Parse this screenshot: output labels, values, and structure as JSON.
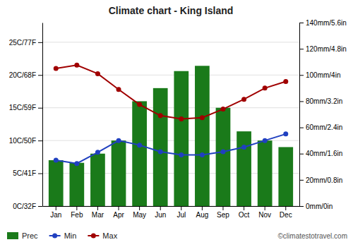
{
  "chart_data": {
    "type": "bar",
    "title": "Climate chart - King Island",
    "categories": [
      "Jan",
      "Feb",
      "Mar",
      "Apr",
      "May",
      "Jun",
      "Jul",
      "Aug",
      "Sep",
      "Oct",
      "Nov",
      "Dec"
    ],
    "series": [
      {
        "name": "Prec",
        "type": "bar",
        "axis": "y2",
        "color": "#1a7a1a",
        "values": [
          35,
          33,
          40,
          50,
          80,
          90,
          103,
          107,
          75,
          57,
          50,
          45
        ]
      },
      {
        "name": "Min",
        "type": "line",
        "color": "#2040c0",
        "marker": "circle",
        "values": [
          7.0,
          6.5,
          8.2,
          10.0,
          9.3,
          8.3,
          7.8,
          7.8,
          8.3,
          9.0,
          10.0,
          11.0
        ]
      },
      {
        "name": "Max",
        "type": "line",
        "color": "#a00000",
        "marker": "circle",
        "values": [
          21.0,
          21.5,
          20.2,
          17.8,
          15.5,
          13.8,
          13.3,
          13.5,
          14.8,
          16.3,
          18.0,
          19.0
        ]
      }
    ],
    "ylim": [
      0,
      28
    ],
    "yticks": [
      {
        "value": 0,
        "label": "0C/32F"
      },
      {
        "value": 5,
        "label": "5C/41F"
      },
      {
        "value": 10,
        "label": "10C/50F"
      },
      {
        "value": 15,
        "label": "15C/59F"
      },
      {
        "value": 20,
        "label": "20C/68F"
      },
      {
        "value": 25,
        "label": "25C/77F"
      }
    ],
    "y2lim": [
      0,
      140
    ],
    "y2ticks": [
      {
        "value": 0,
        "label": "0mm/0in"
      },
      {
        "value": 20,
        "label": "20mm/0.8in"
      },
      {
        "value": 40,
        "label": "40mm/1.6in"
      },
      {
        "value": 60,
        "label": "60mm/2.4in"
      },
      {
        "value": 80,
        "label": "80mm/3.2in"
      },
      {
        "value": 100,
        "label": "100mm/4in"
      },
      {
        "value": 120,
        "label": "120mm/4.8in"
      },
      {
        "value": 140,
        "label": "140mm/5.6in"
      }
    ],
    "grid": true,
    "legend": "lower left",
    "annotations": [
      "©climatestotravel.com"
    ]
  }
}
